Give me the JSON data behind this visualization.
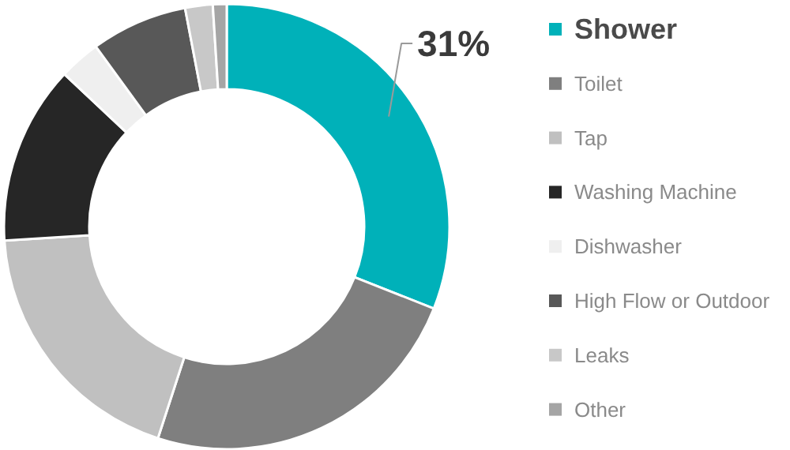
{
  "chart_data": {
    "type": "donut",
    "categories": [
      "Shower",
      "Toilet",
      "Tap",
      "Washing Machine",
      "Dishwasher",
      "High Flow or Outdoor",
      "Leaks",
      "Other"
    ],
    "values": [
      31,
      24,
      19,
      13,
      3,
      7,
      2,
      1
    ],
    "colors": [
      "#00b1b9",
      "#7f7f7f",
      "#c0c0c0",
      "#262626",
      "#efefef",
      "#585858",
      "#c8c8c8",
      "#a5a5a5"
    ],
    "value_labels": [
      "31%",
      null,
      null,
      null,
      null,
      null,
      null,
      null
    ],
    "legend": "right"
  }
}
